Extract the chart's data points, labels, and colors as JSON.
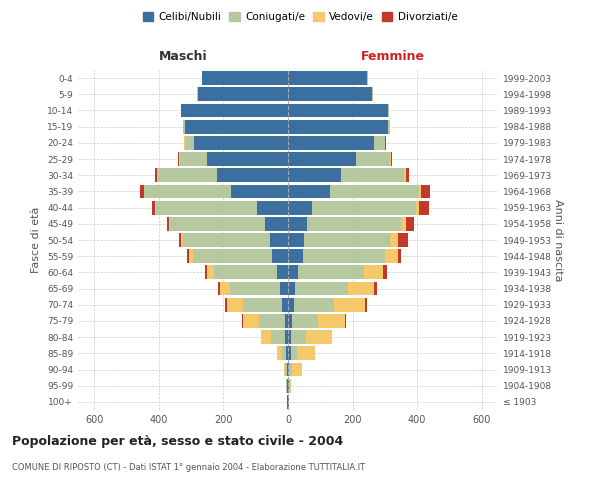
{
  "age_groups": [
    "100+",
    "95-99",
    "90-94",
    "85-89",
    "80-84",
    "75-79",
    "70-74",
    "65-69",
    "60-64",
    "55-59",
    "50-54",
    "45-49",
    "40-44",
    "35-39",
    "30-34",
    "25-29",
    "20-24",
    "15-19",
    "10-14",
    "5-9",
    "0-4"
  ],
  "birth_years": [
    "≤ 1903",
    "1904-1908",
    "1909-1913",
    "1914-1918",
    "1919-1923",
    "1924-1928",
    "1929-1933",
    "1934-1938",
    "1939-1943",
    "1944-1948",
    "1949-1953",
    "1954-1958",
    "1959-1963",
    "1964-1968",
    "1969-1973",
    "1974-1978",
    "1979-1983",
    "1984-1988",
    "1989-1993",
    "1994-1998",
    "1999-2003"
  ],
  "colors": {
    "celibi": "#3a6fa0",
    "coniugati": "#b5c8a0",
    "vedovi": "#f5c96a",
    "divorziati": "#c0392b"
  },
  "maschi": {
    "celibi": [
      2,
      2,
      3,
      5,
      8,
      10,
      20,
      25,
      35,
      50,
      55,
      70,
      95,
      175,
      220,
      250,
      290,
      320,
      330,
      280,
      265
    ],
    "coniugati": [
      1,
      3,
      5,
      15,
      45,
      80,
      120,
      155,
      195,
      245,
      270,
      295,
      315,
      270,
      185,
      85,
      30,
      5,
      2,
      2,
      2
    ],
    "vedovi": [
      0,
      2,
      5,
      15,
      30,
      50,
      50,
      30,
      20,
      10,
      5,
      3,
      2,
      2,
      2,
      2,
      1,
      0,
      0,
      0,
      0
    ],
    "divorziati": [
      0,
      0,
      0,
      0,
      2,
      2,
      5,
      8,
      8,
      8,
      8,
      8,
      10,
      10,
      5,
      3,
      2,
      0,
      0,
      0,
      0
    ]
  },
  "femmine": {
    "nubili": [
      2,
      2,
      3,
      8,
      10,
      12,
      18,
      22,
      30,
      45,
      50,
      60,
      75,
      130,
      165,
      210,
      265,
      310,
      310,
      260,
      245
    ],
    "coniugate": [
      1,
      3,
      10,
      20,
      45,
      80,
      125,
      165,
      205,
      255,
      265,
      290,
      320,
      275,
      195,
      105,
      35,
      5,
      2,
      2,
      2
    ],
    "vedove": [
      0,
      5,
      30,
      55,
      80,
      85,
      95,
      80,
      60,
      40,
      25,
      15,
      10,
      8,
      5,
      3,
      1,
      0,
      0,
      0,
      0
    ],
    "divorziate": [
      0,
      0,
      0,
      0,
      2,
      2,
      5,
      8,
      10,
      10,
      30,
      25,
      30,
      25,
      10,
      5,
      2,
      0,
      0,
      0,
      0
    ]
  },
  "title": "Popolazione per età, sesso e stato civile - 2004",
  "subtitle": "COMUNE DI RIPOSTO (CT) - Dati ISTAT 1° gennaio 2004 - Elaborazione TUTTITALIA.IT",
  "xlabel_maschi": "Maschi",
  "xlabel_femmine": "Femmine",
  "ylabel": "Fasce di età",
  "ylabel_right": "Anni di nascita",
  "xlim": 650,
  "background_color": "#ffffff",
  "grid_color": "#cccccc"
}
